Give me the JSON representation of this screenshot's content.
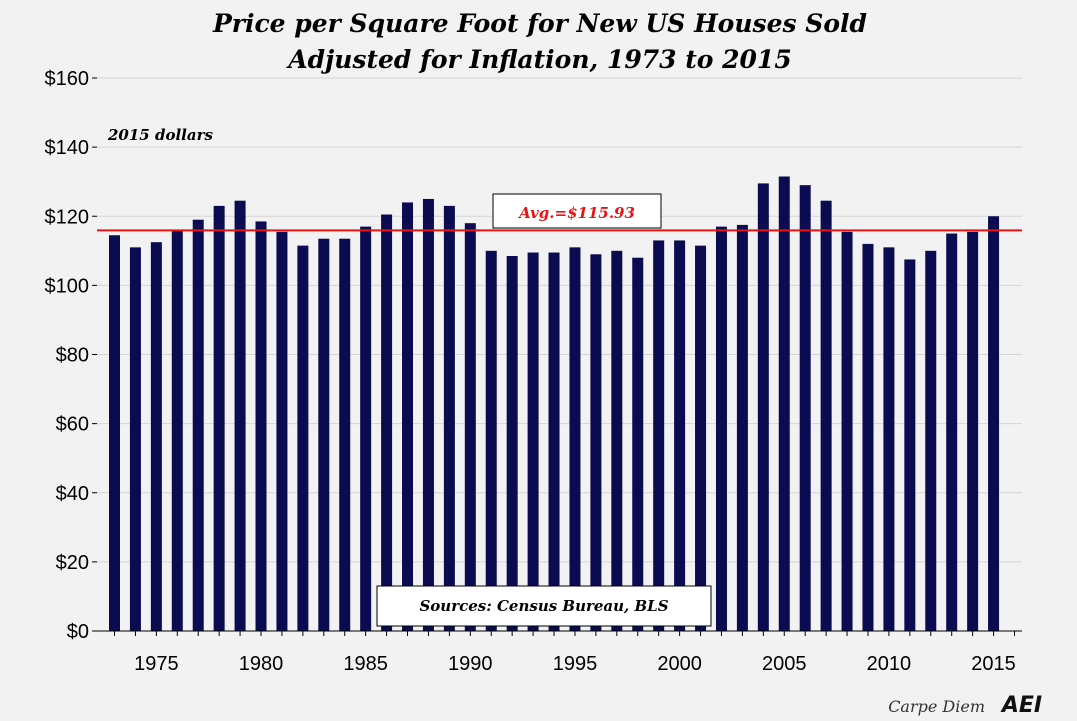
{
  "chart_data": {
    "type": "bar",
    "title": "Price per Square Foot for New US Houses Sold",
    "subtitle": "Adjusted for Inflation, 1973 to 2015",
    "units_label": "2015 dollars",
    "ylim": [
      0,
      160
    ],
    "yticks": [
      0,
      20,
      40,
      60,
      80,
      100,
      120,
      140,
      160
    ],
    "ytick_labels": [
      "$0",
      "$20",
      "$40",
      "$60",
      "$80",
      "$100",
      "$120",
      "$140",
      "$160"
    ],
    "xtick_labels": [
      "1975",
      "1980",
      "1985",
      "1990",
      "1995",
      "2000",
      "2005",
      "2010",
      "2015"
    ],
    "categories": [
      1973,
      1974,
      1975,
      1976,
      1977,
      1978,
      1979,
      1980,
      1981,
      1982,
      1983,
      1984,
      1985,
      1986,
      1987,
      1988,
      1989,
      1990,
      1991,
      1992,
      1993,
      1994,
      1995,
      1996,
      1997,
      1998,
      1999,
      2000,
      2001,
      2002,
      2003,
      2004,
      2005,
      2006,
      2007,
      2008,
      2009,
      2010,
      2011,
      2012,
      2013,
      2014,
      2015
    ],
    "values": [
      114.5,
      111,
      112.5,
      116,
      119,
      123,
      124.5,
      118.5,
      115.5,
      111.5,
      113.5,
      113.5,
      117,
      120.5,
      124,
      125,
      123,
      118,
      110,
      108.5,
      109.5,
      109.5,
      111,
      109,
      110,
      108,
      113,
      113,
      111.5,
      117,
      117.5,
      129.5,
      131.5,
      129,
      124.5,
      115.5,
      112,
      111,
      107.5,
      110,
      115,
      115.5,
      120
    ],
    "average": 115.93,
    "average_label": "Avg.=$115.93",
    "source_label": "Sources: Census Bureau, BLS",
    "bar_color": "#0b0b52",
    "average_color": "#ee1111"
  },
  "branding": {
    "text": "Carpe Diem",
    "logo": "AEI"
  }
}
